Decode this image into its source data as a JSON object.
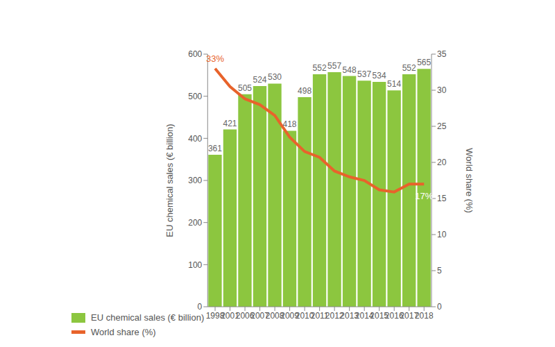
{
  "chart_data": {
    "type": "bar",
    "categories": [
      "1998",
      "2001",
      "2006",
      "2007",
      "2008",
      "2009",
      "2010",
      "2011",
      "2012",
      "2013",
      "2014",
      "2015",
      "2016",
      "2017",
      "2018"
    ],
    "series": [
      {
        "name": "EU chemical sales (€ billion)",
        "type": "bar",
        "color": "#8cc63f",
        "values": [
          361,
          421,
          505,
          524,
          530,
          418,
          498,
          552,
          557,
          548,
          537,
          534,
          514,
          552,
          565
        ]
      },
      {
        "name": "World share (%)",
        "type": "line",
        "color": "#e8632b",
        "axis": "y2",
        "values": [
          33,
          30.5,
          28.8,
          28,
          26.5,
          23.5,
          21.5,
          20.7,
          18.8,
          18,
          17.5,
          16.2,
          15.9,
          17,
          17
        ],
        "value_labels": [
          "33%",
          null,
          null,
          null,
          null,
          null,
          null,
          null,
          null,
          null,
          null,
          null,
          null,
          null,
          "17%"
        ]
      }
    ],
    "y_label": "EU chemical sales (€ billion)",
    "y2_label": "World share (%)",
    "ylim": [
      0,
      600
    ],
    "yticks": [
      0,
      100,
      200,
      300,
      400,
      500,
      600
    ],
    "y2lim": [
      0,
      35
    ],
    "y2ticks": [
      0,
      5,
      10,
      15,
      20,
      25,
      30,
      35
    ],
    "data_labels": true,
    "legend": "bottom left",
    "grid": false
  }
}
